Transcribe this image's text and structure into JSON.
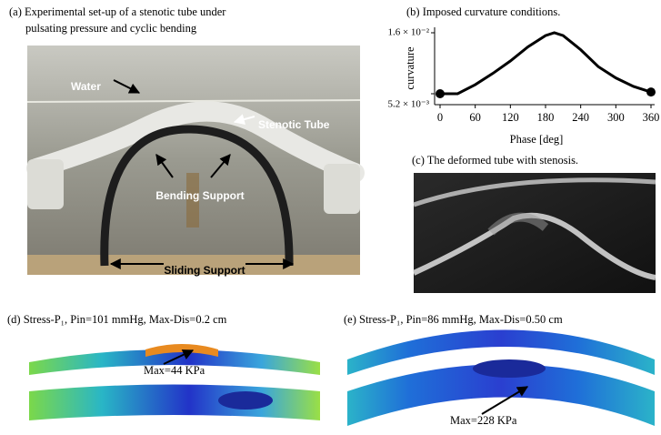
{
  "panels": {
    "a": {
      "title": [
        "(a) Experimental set-up of a stenotic tube under",
        "pulsating pressure  and cyclic bending"
      ],
      "labels": [
        "Water",
        "Stenotic Tube",
        "Bending Support",
        "Sliding Support"
      ]
    },
    "c": {
      "title": "(c) The deformed tube with stenosis."
    },
    "d": {
      "title": "(d) Stress-P₁, Pin=101 mmHg, Max-Dis=0.2 cm",
      "label": "Max=44 KPa"
    },
    "e": {
      "title": "(e) Stress-P₁, Pin=86 mmHg, Max-Dis=0.50 cm",
      "label": "Max=228  KPa"
    }
  },
  "chart_data": {
    "type": "line",
    "title": "(b) Imposed curvature conditions.",
    "x_label": "Phase [deg]",
    "y_label": "curvature",
    "x": [
      0,
      30,
      60,
      90,
      120,
      150,
      180,
      195,
      210,
      240,
      270,
      300,
      330,
      360
    ],
    "values": [
      0.0052,
      0.0052,
      0.0068,
      0.0088,
      0.011,
      0.0135,
      0.0155,
      0.016,
      0.0155,
      0.013,
      0.01,
      0.008,
      0.0065,
      0.0055
    ],
    "color": "#000000",
    "xlim": [
      0,
      360
    ],
    "xticks": [
      0,
      60,
      120,
      180,
      240,
      300,
      360
    ],
    "ylim": [
      0.0052,
      0.016
    ],
    "yticks": [
      {
        "value": 0.0052,
        "label": "5.2 × 10⁻³"
      },
      {
        "value": 0.016,
        "label": "1.6 × 10⁻²"
      }
    ]
  }
}
